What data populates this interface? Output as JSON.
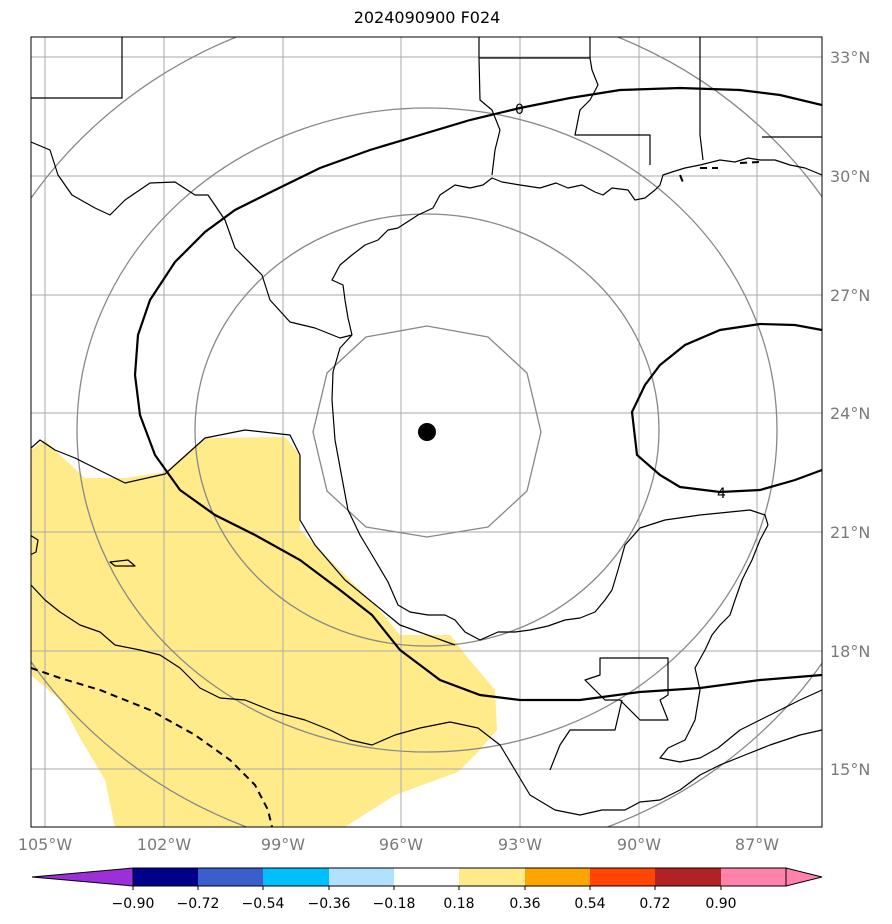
{
  "title": "2024090900 F024",
  "lon_labels": [
    "105°W",
    "102°W",
    "99°W",
    "96°W",
    "93°W",
    "90°W",
    "87°W"
  ],
  "lat_labels": [
    "33°N",
    "30°N",
    "27°N",
    "24°N",
    "21°N",
    "18°N",
    "15°N"
  ],
  "colorbar": {
    "ticks": [
      "−0.90",
      "−0.72",
      "−0.54",
      "−0.36",
      "−0.18",
      "0.18",
      "0.36",
      "0.54",
      "0.72",
      "0.90"
    ],
    "colors": [
      "#9b30d9",
      "#00008b",
      "#3a5fcd",
      "#00bfff",
      "#b0e2ff",
      "#ffffff",
      "#ffeb8a",
      "#ffa500",
      "#ff4500",
      "#b22222",
      "#ff82ab"
    ]
  },
  "contour_labels": {
    "zero": "0",
    "four": "4"
  },
  "storm_center": {
    "lon": "95.3°W",
    "lat": "23.5°N"
  },
  "colors": {
    "fill": "#ffeb8a",
    "grid": "#aaaaaa",
    "rings": "#888888"
  }
}
